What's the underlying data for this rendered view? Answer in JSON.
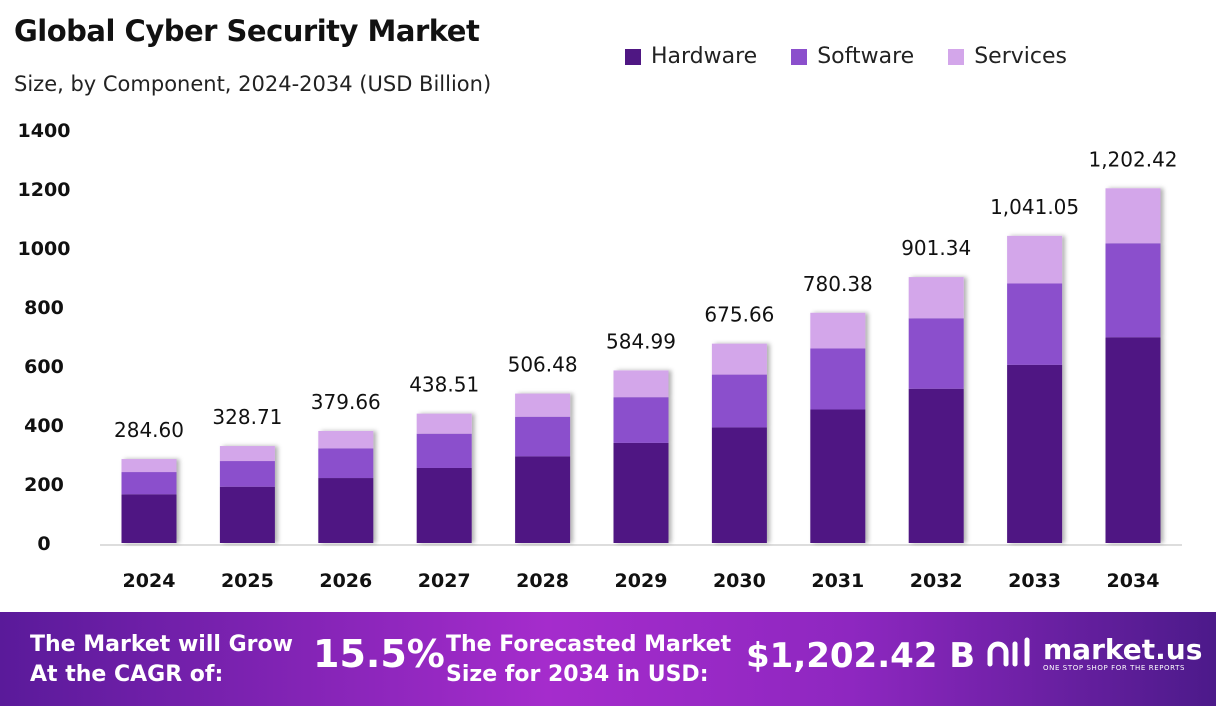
{
  "chart_data": {
    "type": "bar",
    "stacked": true,
    "title": "Global Cyber Security Market",
    "subtitle": "Size, by Component, 2024-2034 (USD Billion)",
    "categories": [
      "2024",
      "2025",
      "2026",
      "2027",
      "2028",
      "2029",
      "2030",
      "2031",
      "2032",
      "2033",
      "2034"
    ],
    "series": [
      {
        "name": "Hardware",
        "color": "#4f1783",
        "values": [
          165.1,
          190.7,
          220.2,
          254.3,
          293.8,
          339.3,
          391.9,
          452.6,
          522.8,
          603.8,
          697.4
        ]
      },
      {
        "name": "Software",
        "color": "#8b4fcc",
        "values": [
          75.4,
          87.1,
          100.6,
          116.2,
          134.2,
          155.0,
          179.0,
          206.8,
          238.9,
          275.9,
          318.6
        ]
      },
      {
        "name": "Services",
        "color": "#d3a6ea",
        "values": [
          44.1,
          50.9,
          58.9,
          68.0,
          78.5,
          90.7,
          104.8,
          121.0,
          139.7,
          161.4,
          186.4
        ]
      }
    ],
    "totals": [
      "284.60",
      "328.71",
      "379.66",
      "438.51",
      "506.48",
      "584.99",
      "675.66",
      "780.38",
      "901.34",
      "1,041.05",
      "1,202.42"
    ],
    "yticks": [
      0,
      200,
      400,
      600,
      800,
      1000,
      1200,
      1400
    ],
    "ylim": [
      0,
      1400
    ],
    "grid": false,
    "legend_placement": "top-right"
  },
  "footer": {
    "cagr_label_1": "The Market will Grow",
    "cagr_label_2": "At the CAGR of:",
    "cagr_value": "15.5%",
    "forecast_label_1": "The Forecasted Market",
    "forecast_label_2": "Size for 2034 in USD:",
    "forecast_value": "$1,202.42 B",
    "logo_name": "market.us",
    "logo_tagline": "ONE STOP SHOP FOR THE REPORTS"
  }
}
